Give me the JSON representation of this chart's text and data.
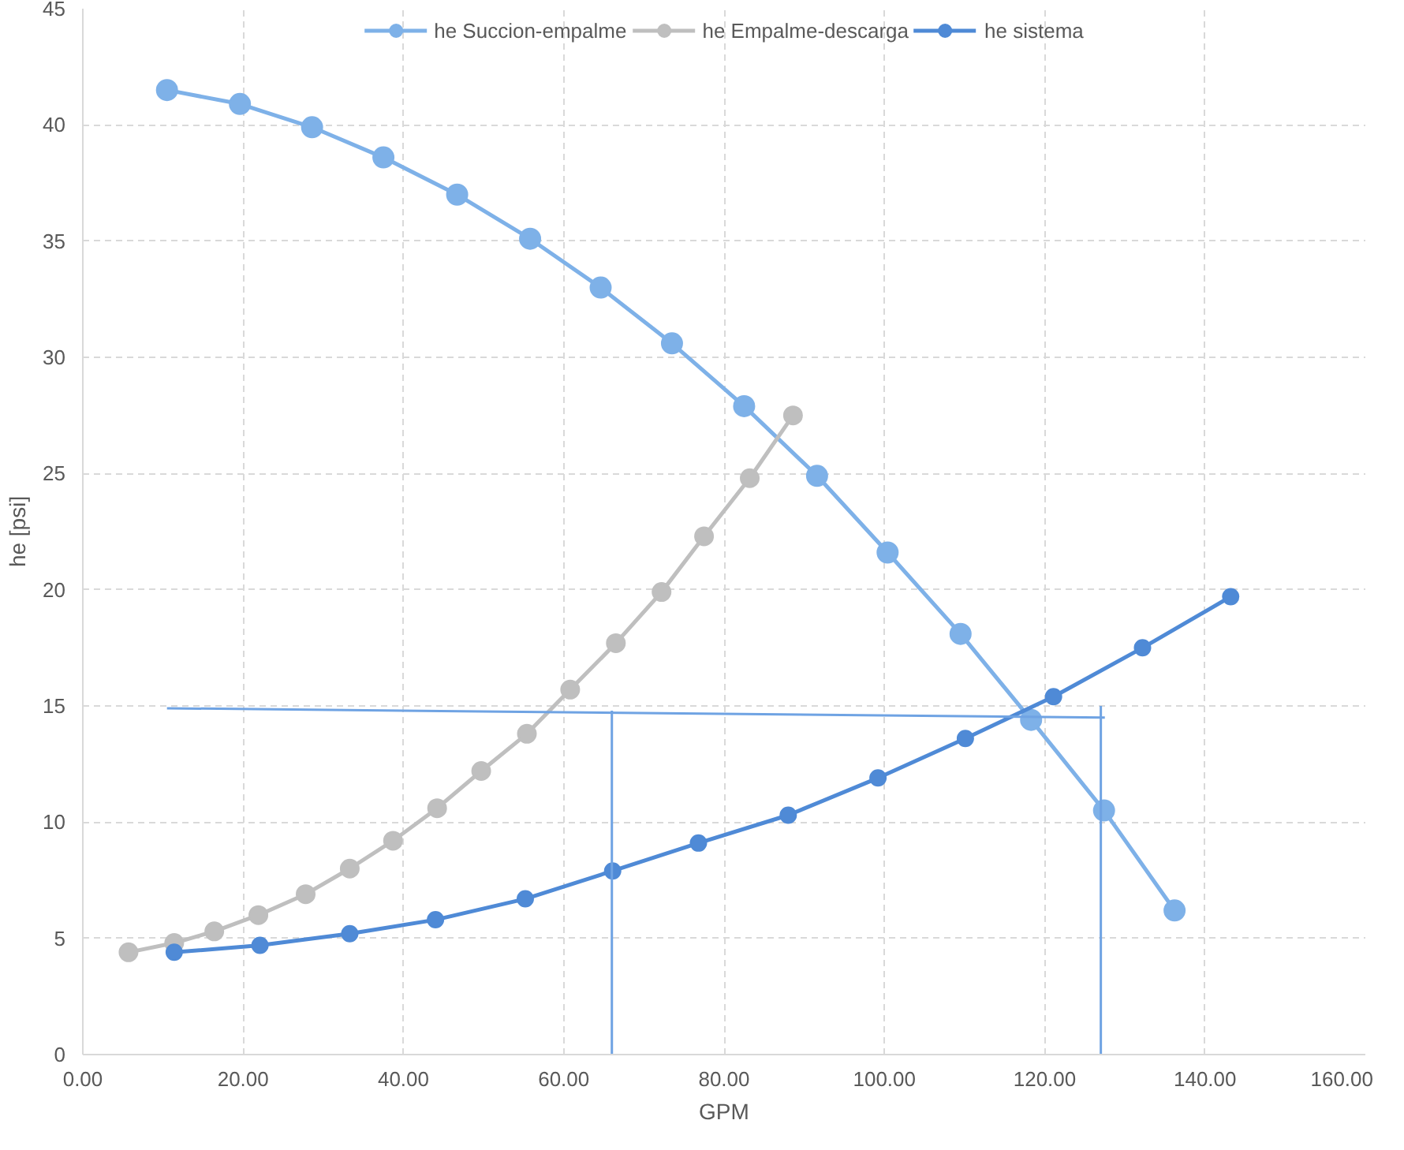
{
  "chart_data": {
    "type": "line",
    "xlabel": "GPM",
    "ylabel": "he [psi]",
    "xlim": [
      0,
      160
    ],
    "ylim": [
      0,
      45
    ],
    "xticks": [
      {
        "value": 0,
        "label": "0.00"
      },
      {
        "value": 20,
        "label": "20.00"
      },
      {
        "value": 40,
        "label": "40.00"
      },
      {
        "value": 60,
        "label": "60.00"
      },
      {
        "value": 80,
        "label": "80.00"
      },
      {
        "value": 100,
        "label": "100.00"
      },
      {
        "value": 120,
        "label": "120.00"
      },
      {
        "value": 140,
        "label": "140.00"
      },
      {
        "value": 160,
        "label": "160.00"
      }
    ],
    "yticks": [
      0,
      5,
      10,
      15,
      20,
      25,
      30,
      35,
      40,
      45
    ],
    "grid": true,
    "legend": "top",
    "line_style": "solid",
    "series": [
      {
        "name": "he Succion-empalme",
        "color": "#7eb1e8",
        "marker": "circle",
        "x": [
          10.5,
          19.6,
          28.6,
          37.5,
          46.7,
          55.8,
          64.6,
          73.5,
          82.5,
          91.6,
          100.4,
          109.5,
          118.3,
          127.4,
          136.2
        ],
        "values": [
          41.5,
          40.9,
          39.9,
          38.6,
          37.0,
          35.1,
          33.0,
          30.6,
          27.9,
          24.9,
          21.6,
          18.1,
          14.4,
          10.5,
          6.2
        ]
      },
      {
        "name": "he Empalme-descarga",
        "color": "#bfbfbf",
        "marker": "circle",
        "x": [
          5.7,
          11.4,
          16.4,
          21.9,
          27.8,
          33.3,
          38.7,
          44.2,
          49.7,
          55.4,
          60.8,
          66.5,
          72.2,
          77.5,
          83.2,
          88.6
        ],
        "values": [
          4.4,
          4.8,
          5.3,
          6.0,
          6.9,
          8.0,
          9.2,
          10.6,
          12.2,
          13.8,
          15.7,
          17.7,
          19.9,
          22.3,
          24.8,
          27.5
        ]
      },
      {
        "name": "he sistema",
        "color": "#4f8ad6",
        "marker": "circle",
        "x": [
          11.4,
          22.1,
          33.3,
          44.0,
          55.2,
          66.1,
          76.8,
          88.0,
          99.2,
          110.1,
          121.1,
          132.2,
          143.2
        ],
        "values": [
          4.4,
          4.7,
          5.2,
          5.8,
          6.7,
          7.9,
          9.1,
          10.3,
          11.9,
          13.6,
          15.4,
          17.5,
          19.7
        ]
      },
      {
        "color": "#6fa3e3",
        "x": [
          10.5,
          127.5
        ],
        "values": [
          14.9,
          14.5
        ]
      },
      {
        "color": "#6fa3e3",
        "x": [
          66,
          66
        ],
        "values": [
          14.8,
          0
        ]
      },
      {
        "color": "#6fa3e3",
        "x": [
          127,
          127
        ],
        "values": [
          15,
          0
        ]
      }
    ]
  }
}
